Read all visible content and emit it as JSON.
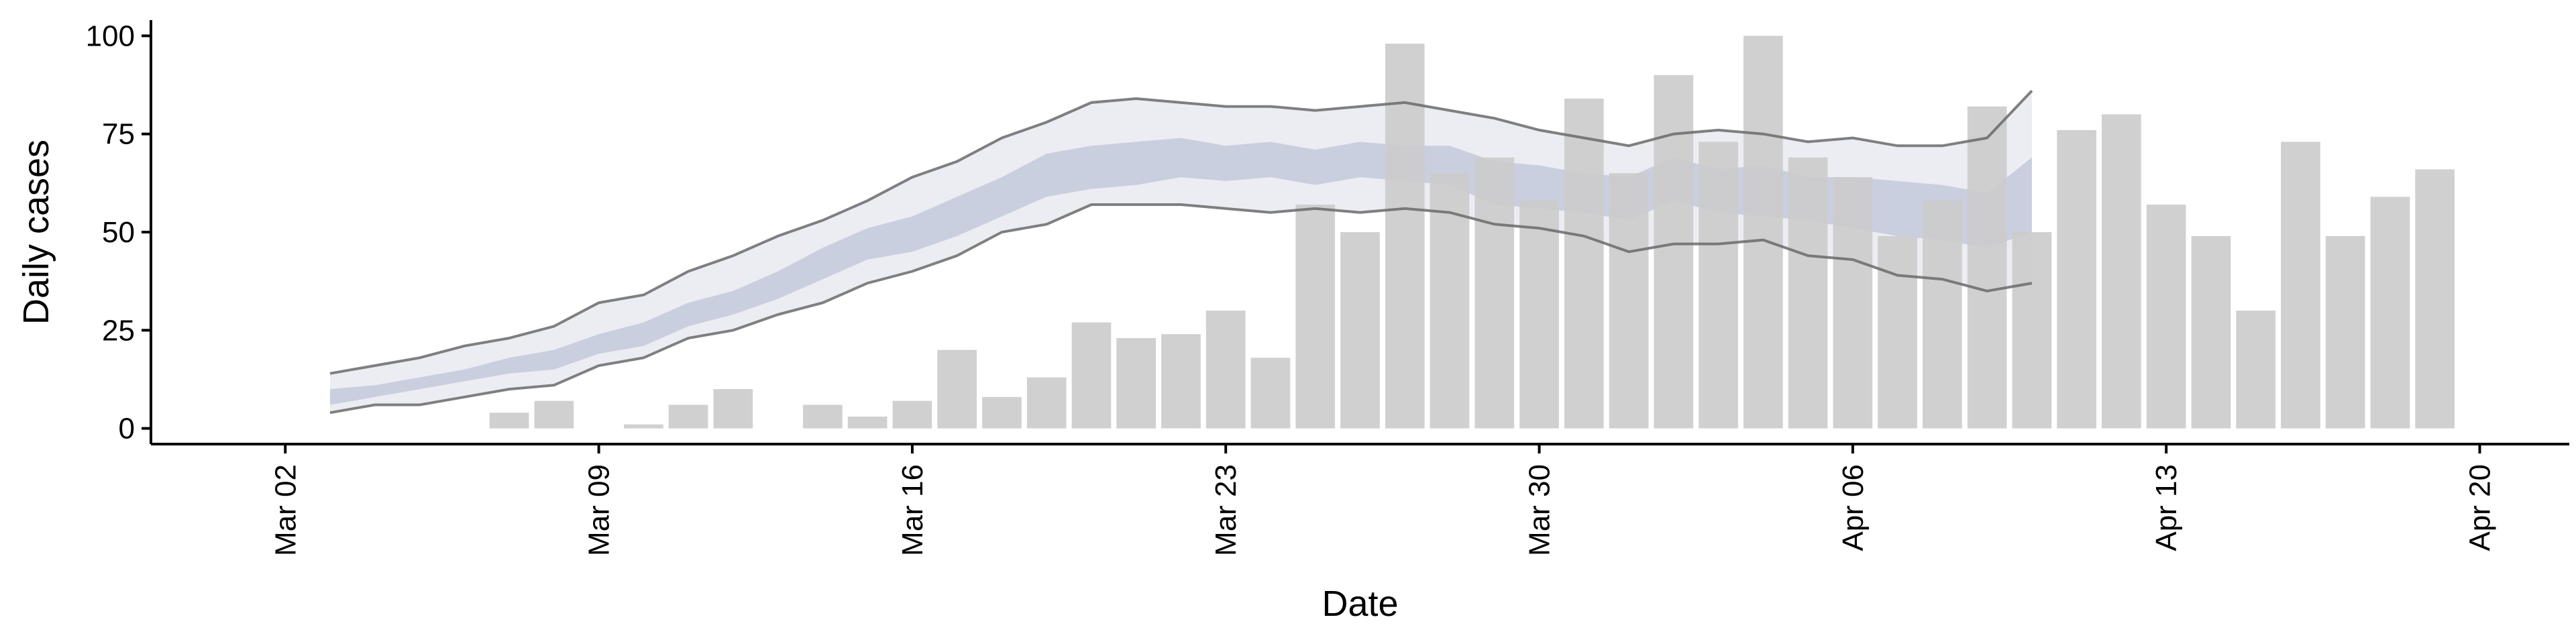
{
  "chart_data": {
    "type": "bar",
    "xlabel": "Date",
    "ylabel": "Daily cases",
    "x_axis_type": "date",
    "x_ticks": [
      "2020-03-02",
      "2020-03-09",
      "2020-03-16",
      "2020-03-23",
      "2020-03-30",
      "2020-04-06",
      "2020-04-13",
      "2020-04-20"
    ],
    "x_tick_labels": [
      "Mar 02",
      "Mar 09",
      "Mar 16",
      "Mar 23",
      "Mar 30",
      "Apr 06",
      "Apr 13",
      "Apr 20"
    ],
    "y_ticks": [
      0,
      25,
      50,
      75,
      100
    ],
    "ylim": [
      -4,
      104
    ],
    "xlim": [
      "2020-02-28",
      "2020-04-22"
    ],
    "grid": false,
    "bars": {
      "color": "#cccccc",
      "dates": [
        "2020-03-07",
        "2020-03-08",
        "2020-03-10",
        "2020-03-11",
        "2020-03-12",
        "2020-03-14",
        "2020-03-15",
        "2020-03-16",
        "2020-03-17",
        "2020-03-18",
        "2020-03-19",
        "2020-03-20",
        "2020-03-21",
        "2020-03-22",
        "2020-03-23",
        "2020-03-24",
        "2020-03-25",
        "2020-03-26",
        "2020-03-27",
        "2020-03-28",
        "2020-03-29",
        "2020-03-30",
        "2020-03-31",
        "2020-04-01",
        "2020-04-02",
        "2020-04-03",
        "2020-04-04",
        "2020-04-05",
        "2020-04-06",
        "2020-04-07",
        "2020-04-08",
        "2020-04-09",
        "2020-04-10",
        "2020-04-11",
        "2020-04-12",
        "2020-04-13",
        "2020-04-14",
        "2020-04-15",
        "2020-04-16",
        "2020-04-17",
        "2020-04-18",
        "2020-04-19"
      ],
      "values": [
        4,
        7,
        1,
        6,
        10,
        6,
        3,
        7,
        20,
        8,
        13,
        27,
        23,
        24,
        30,
        18,
        57,
        50,
        98,
        65,
        69,
        58,
        84,
        65,
        90,
        73,
        100,
        69,
        64,
        49,
        58,
        82,
        50,
        76,
        80,
        57,
        49,
        30,
        73,
        49,
        59,
        66
      ]
    },
    "bands": {
      "dates": [
        "2020-03-03",
        "2020-03-04",
        "2020-03-05",
        "2020-03-06",
        "2020-03-07",
        "2020-03-08",
        "2020-03-09",
        "2020-03-10",
        "2020-03-11",
        "2020-03-12",
        "2020-03-13",
        "2020-03-14",
        "2020-03-15",
        "2020-03-16",
        "2020-03-17",
        "2020-03-18",
        "2020-03-19",
        "2020-03-20",
        "2020-03-21",
        "2020-03-22",
        "2020-03-23",
        "2020-03-24",
        "2020-03-25",
        "2020-03-26",
        "2020-03-27",
        "2020-03-28",
        "2020-03-29",
        "2020-03-30",
        "2020-03-31",
        "2020-04-01",
        "2020-04-02",
        "2020-04-03",
        "2020-04-04",
        "2020-04-05",
        "2020-04-06",
        "2020-04-07",
        "2020-04-08",
        "2020-04-09",
        "2020-04-10"
      ],
      "outer_upper": [
        14,
        16,
        18,
        21,
        23,
        26,
        32,
        34,
        40,
        44,
        49,
        53,
        58,
        64,
        68,
        74,
        78,
        83,
        84,
        83,
        82,
        82,
        81,
        82,
        83,
        81,
        79,
        76,
        74,
        72,
        75,
        76,
        75,
        73,
        74,
        72,
        72,
        74,
        86
      ],
      "outer_lower": [
        4,
        6,
        6,
        8,
        10,
        11,
        16,
        18,
        23,
        25,
        29,
        32,
        37,
        40,
        44,
        50,
        52,
        57,
        57,
        57,
        56,
        55,
        56,
        55,
        56,
        55,
        52,
        51,
        49,
        45,
        47,
        47,
        48,
        44,
        43,
        39,
        38,
        35,
        37
      ],
      "inner_upper": [
        10,
        11,
        13,
        15,
        18,
        20,
        24,
        27,
        32,
        35,
        40,
        46,
        51,
        54,
        59,
        64,
        70,
        72,
        73,
        74,
        72,
        73,
        71,
        73,
        72,
        72,
        68,
        67,
        65,
        64,
        69,
        66,
        67,
        64,
        64,
        63,
        62,
        60,
        69
      ],
      "inner_lower": [
        6,
        8,
        10,
        12,
        14,
        15,
        19,
        21,
        26,
        29,
        33,
        38,
        43,
        45,
        49,
        54,
        59,
        61,
        62,
        64,
        63,
        64,
        62,
        64,
        63,
        62,
        57,
        56,
        55,
        53,
        58,
        55,
        54,
        53,
        51,
        49,
        48,
        46,
        50
      ],
      "outer_color": "#e9ebf2",
      "inner_color": "#c6cbdd",
      "line_color": "#6a6a6a"
    }
  }
}
